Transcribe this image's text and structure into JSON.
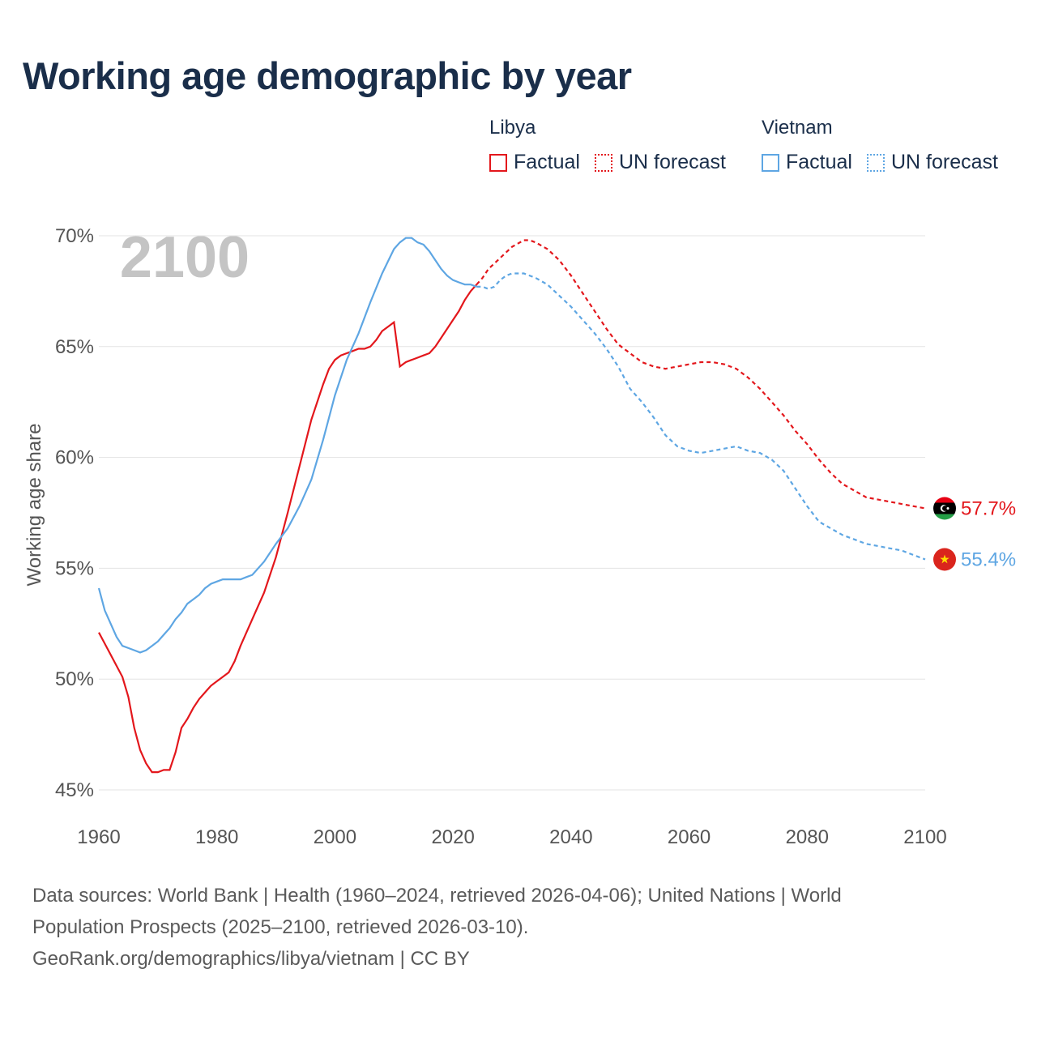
{
  "title": "Working age demographic by year",
  "legend": {
    "groups": [
      {
        "country": "Libya",
        "color": "#e3171c",
        "items": [
          "Factual",
          "UN forecast"
        ]
      },
      {
        "country": "Vietnam",
        "color": "#5ea6e3",
        "items": [
          "Factual",
          "UN forecast"
        ]
      }
    ]
  },
  "year_watermark": "2100",
  "footer": {
    "line1": "Data sources: World Bank | Health (1960–2024, retrieved 2026-04-06); United Nations | World",
    "line2": "Population Prospects (2025–2100, retrieved 2026-03-10).",
    "line3": "GeoRank.org/demographics/libya/vietnam | CC BY"
  },
  "end_labels": {
    "libya": "57.7%",
    "vietnam": "55.4%"
  },
  "chart_data": {
    "type": "line",
    "title": "Working age demographic by year",
    "xlabel": "",
    "ylabel": "Working age share",
    "xlim": [
      1960,
      2100
    ],
    "ylim": [
      45,
      70
    ],
    "x_ticks": [
      1960,
      1980,
      2000,
      2020,
      2040,
      2060,
      2080,
      2100
    ],
    "y_ticks": [
      45,
      50,
      55,
      60,
      65,
      70
    ],
    "y_tick_labels": [
      "45%",
      "50%",
      "55%",
      "60%",
      "65%",
      "70%"
    ],
    "factual_end_year": 2024,
    "series": [
      {
        "name": "Libya",
        "color": "#e3171c",
        "points": [
          [
            1960,
            52.1
          ],
          [
            1962,
            51.1
          ],
          [
            1964,
            50.1
          ],
          [
            1965,
            49.2
          ],
          [
            1966,
            47.8
          ],
          [
            1967,
            46.8
          ],
          [
            1968,
            46.2
          ],
          [
            1969,
            45.8
          ],
          [
            1970,
            45.8
          ],
          [
            1971,
            45.9
          ],
          [
            1972,
            45.9
          ],
          [
            1973,
            46.7
          ],
          [
            1974,
            47.8
          ],
          [
            1975,
            48.2
          ],
          [
            1976,
            48.7
          ],
          [
            1977,
            49.1
          ],
          [
            1978,
            49.4
          ],
          [
            1979,
            49.7
          ],
          [
            1980,
            49.9
          ],
          [
            1981,
            50.1
          ],
          [
            1982,
            50.3
          ],
          [
            1983,
            50.8
          ],
          [
            1984,
            51.5
          ],
          [
            1986,
            52.7
          ],
          [
            1988,
            53.9
          ],
          [
            1990,
            55.5
          ],
          [
            1992,
            57.5
          ],
          [
            1994,
            59.6
          ],
          [
            1996,
            61.7
          ],
          [
            1998,
            63.3
          ],
          [
            1999,
            64.0
          ],
          [
            2000,
            64.4
          ],
          [
            2001,
            64.6
          ],
          [
            2002,
            64.7
          ],
          [
            2003,
            64.8
          ],
          [
            2004,
            64.9
          ],
          [
            2005,
            64.9
          ],
          [
            2006,
            65.0
          ],
          [
            2007,
            65.3
          ],
          [
            2008,
            65.7
          ],
          [
            2009,
            65.9
          ],
          [
            2010,
            66.1
          ],
          [
            2011,
            64.1
          ],
          [
            2012,
            64.3
          ],
          [
            2013,
            64.4
          ],
          [
            2014,
            64.5
          ],
          [
            2015,
            64.6
          ],
          [
            2016,
            64.7
          ],
          [
            2017,
            65.0
          ],
          [
            2018,
            65.4
          ],
          [
            2019,
            65.8
          ],
          [
            2020,
            66.2
          ],
          [
            2021,
            66.6
          ],
          [
            2022,
            67.1
          ],
          [
            2023,
            67.5
          ],
          [
            2024,
            67.8
          ],
          [
            2025,
            68.1
          ],
          [
            2026,
            68.5
          ],
          [
            2028,
            69.0
          ],
          [
            2030,
            69.5
          ],
          [
            2032,
            69.8
          ],
          [
            2033,
            69.8
          ],
          [
            2034,
            69.7
          ],
          [
            2036,
            69.4
          ],
          [
            2038,
            68.9
          ],
          [
            2040,
            68.2
          ],
          [
            2042,
            67.4
          ],
          [
            2044,
            66.6
          ],
          [
            2046,
            65.8
          ],
          [
            2048,
            65.1
          ],
          [
            2050,
            64.7
          ],
          [
            2052,
            64.3
          ],
          [
            2054,
            64.1
          ],
          [
            2056,
            64.0
          ],
          [
            2058,
            64.1
          ],
          [
            2060,
            64.2
          ],
          [
            2062,
            64.3
          ],
          [
            2064,
            64.3
          ],
          [
            2066,
            64.2
          ],
          [
            2068,
            64.0
          ],
          [
            2070,
            63.6
          ],
          [
            2072,
            63.1
          ],
          [
            2074,
            62.5
          ],
          [
            2076,
            61.9
          ],
          [
            2078,
            61.2
          ],
          [
            2080,
            60.6
          ],
          [
            2082,
            59.9
          ],
          [
            2084,
            59.3
          ],
          [
            2086,
            58.8
          ],
          [
            2088,
            58.5
          ],
          [
            2090,
            58.2
          ],
          [
            2092,
            58.1
          ],
          [
            2094,
            58.0
          ],
          [
            2096,
            57.9
          ],
          [
            2098,
            57.8
          ],
          [
            2100,
            57.7
          ]
        ]
      },
      {
        "name": "Vietnam",
        "color": "#5ea6e3",
        "points": [
          [
            1960,
            54.1
          ],
          [
            1961,
            53.1
          ],
          [
            1962,
            52.5
          ],
          [
            1963,
            51.9
          ],
          [
            1964,
            51.5
          ],
          [
            1965,
            51.4
          ],
          [
            1966,
            51.3
          ],
          [
            1967,
            51.2
          ],
          [
            1968,
            51.3
          ],
          [
            1969,
            51.5
          ],
          [
            1970,
            51.7
          ],
          [
            1971,
            52.0
          ],
          [
            1972,
            52.3
          ],
          [
            1973,
            52.7
          ],
          [
            1974,
            53.0
          ],
          [
            1975,
            53.4
          ],
          [
            1976,
            53.6
          ],
          [
            1977,
            53.8
          ],
          [
            1978,
            54.1
          ],
          [
            1979,
            54.3
          ],
          [
            1980,
            54.4
          ],
          [
            1981,
            54.5
          ],
          [
            1982,
            54.5
          ],
          [
            1983,
            54.5
          ],
          [
            1984,
            54.5
          ],
          [
            1985,
            54.6
          ],
          [
            1986,
            54.7
          ],
          [
            1988,
            55.3
          ],
          [
            1990,
            56.1
          ],
          [
            1992,
            56.8
          ],
          [
            1994,
            57.8
          ],
          [
            1996,
            59.0
          ],
          [
            1998,
            60.8
          ],
          [
            2000,
            62.8
          ],
          [
            2002,
            64.4
          ],
          [
            2004,
            65.6
          ],
          [
            2006,
            67.0
          ],
          [
            2008,
            68.3
          ],
          [
            2010,
            69.4
          ],
          [
            2011,
            69.7
          ],
          [
            2012,
            69.9
          ],
          [
            2013,
            69.9
          ],
          [
            2014,
            69.7
          ],
          [
            2015,
            69.6
          ],
          [
            2016,
            69.3
          ],
          [
            2017,
            68.9
          ],
          [
            2018,
            68.5
          ],
          [
            2019,
            68.2
          ],
          [
            2020,
            68.0
          ],
          [
            2021,
            67.9
          ],
          [
            2022,
            67.8
          ],
          [
            2023,
            67.8
          ],
          [
            2024,
            67.7
          ],
          [
            2025,
            67.7
          ],
          [
            2026,
            67.6
          ],
          [
            2027,
            67.7
          ],
          [
            2028,
            68.0
          ],
          [
            2029,
            68.2
          ],
          [
            2030,
            68.3
          ],
          [
            2031,
            68.3
          ],
          [
            2032,
            68.3
          ],
          [
            2034,
            68.1
          ],
          [
            2036,
            67.8
          ],
          [
            2038,
            67.3
          ],
          [
            2040,
            66.8
          ],
          [
            2042,
            66.2
          ],
          [
            2044,
            65.6
          ],
          [
            2046,
            64.9
          ],
          [
            2048,
            64.1
          ],
          [
            2050,
            63.1
          ],
          [
            2052,
            62.5
          ],
          [
            2054,
            61.8
          ],
          [
            2056,
            61.0
          ],
          [
            2058,
            60.5
          ],
          [
            2060,
            60.3
          ],
          [
            2062,
            60.2
          ],
          [
            2064,
            60.3
          ],
          [
            2066,
            60.4
          ],
          [
            2068,
            60.5
          ],
          [
            2070,
            60.3
          ],
          [
            2072,
            60.2
          ],
          [
            2074,
            59.9
          ],
          [
            2076,
            59.4
          ],
          [
            2078,
            58.6
          ],
          [
            2080,
            57.8
          ],
          [
            2082,
            57.1
          ],
          [
            2084,
            56.8
          ],
          [
            2086,
            56.5
          ],
          [
            2088,
            56.3
          ],
          [
            2090,
            56.1
          ],
          [
            2092,
            56.0
          ],
          [
            2094,
            55.9
          ],
          [
            2096,
            55.8
          ],
          [
            2098,
            55.6
          ],
          [
            2100,
            55.4
          ]
        ]
      }
    ]
  }
}
